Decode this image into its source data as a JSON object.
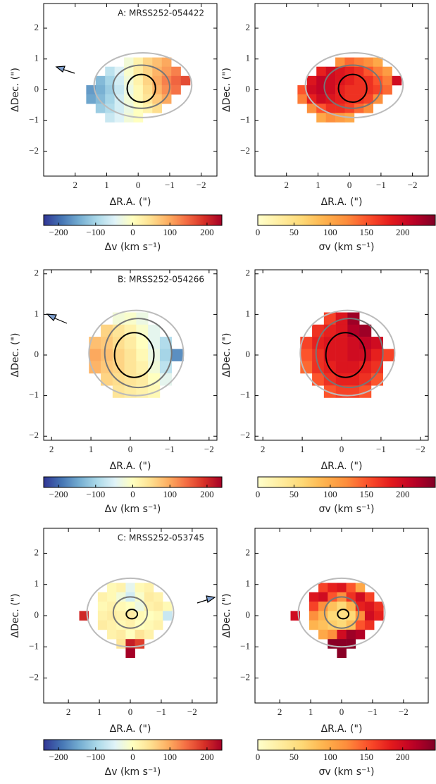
{
  "chart_data": [
    {
      "type": "heatmap",
      "title": "A: MRSS252-054422",
      "xlabel": "ΔR.A. (\")",
      "ylabel": "ΔDec. (\")",
      "xlim": [
        3.0,
        -2.5
      ],
      "ylim": [
        -2.8,
        2.8
      ],
      "xticks": [
        2,
        1,
        0,
        {
          "value": -1,
          "label": "−1"
        },
        {
          "value": -2,
          "label": "−2"
        }
      ],
      "yticks": [
        {
          "value": -2,
          "label": "−2"
        },
        {
          "value": -1,
          "label": "−1"
        },
        0,
        1,
        2
      ],
      "x": [
        1.5,
        1.2,
        0.9,
        0.6,
        0.3,
        0,
        -0.3,
        -0.6,
        -0.9,
        -1.2,
        -1.5
      ],
      "y": [
        0.9,
        0.6,
        0.3,
        0,
        -0.3,
        -0.6,
        -0.9
      ],
      "z": [
        [
          null,
          null,
          null,
          null,
          -20,
          20,
          60,
          80,
          100,
          null,
          null
        ],
        [
          null,
          null,
          -80,
          -50,
          -10,
          30,
          60,
          90,
          110,
          130,
          null
        ],
        [
          null,
          -130,
          -100,
          -60,
          -20,
          20,
          60,
          100,
          130,
          150,
          170
        ],
        [
          -160,
          -140,
          -110,
          -70,
          -30,
          10,
          50,
          90,
          120,
          140,
          null
        ],
        [
          -150,
          -130,
          -100,
          -60,
          -20,
          10,
          40,
          70,
          100,
          null,
          null
        ],
        [
          null,
          -110,
          -90,
          -60,
          -30,
          0,
          20,
          50,
          null,
          null,
          null
        ],
        [
          null,
          null,
          -70,
          -50,
          -20,
          0,
          null,
          null,
          null,
          null,
          null
        ]
      ],
      "colormap": "RdYlBu_r",
      "clim": [
        -240,
        240
      ],
      "cbar_ticks": [
        {
          "value": -200,
          "label": "−200"
        },
        {
          "value": -100,
          "label": "−100"
        },
        0,
        100,
        200
      ],
      "cbar_label": "Δv (km s⁻¹)",
      "contours": [
        {
          "cx": -0.15,
          "cy": 0.15,
          "rx": 1.55,
          "ry": 1.05,
          "color": "#bbbbbb"
        },
        {
          "cx": -0.1,
          "cy": 0.1,
          "rx": 0.9,
          "ry": 0.7,
          "color": "#777777"
        },
        {
          "cx": -0.1,
          "cy": 0.05,
          "rx": 0.45,
          "ry": 0.45,
          "color": "#000000"
        }
      ]
    },
    {
      "type": "heatmap",
      "xlabel": "ΔR.A. (\")",
      "ylabel": "ΔDec. (\")",
      "xlim": [
        3.0,
        -2.5
      ],
      "ylim": [
        -2.8,
        2.8
      ],
      "xticks": [
        2,
        1,
        0,
        {
          "value": -1,
          "label": "−1"
        },
        {
          "value": -2,
          "label": "−2"
        }
      ],
      "yticks": [
        {
          "value": -2,
          "label": "−2"
        },
        {
          "value": -1,
          "label": "−1"
        },
        0,
        1,
        2
      ],
      "x": [
        1.5,
        1.2,
        0.9,
        0.6,
        0.3,
        0,
        -0.3,
        -0.6,
        -0.9,
        -1.2,
        -1.5
      ],
      "y": [
        0.9,
        0.6,
        0.3,
        0,
        -0.3,
        -0.6,
        -0.9
      ],
      "z": [
        [
          null,
          null,
          null,
          null,
          120,
          140,
          130,
          120,
          100,
          null,
          null
        ],
        [
          null,
          null,
          180,
          200,
          190,
          180,
          170,
          150,
          130,
          110,
          null
        ],
        [
          null,
          190,
          210,
          200,
          190,
          180,
          170,
          170,
          150,
          130,
          200
        ],
        [
          150,
          200,
          210,
          200,
          180,
          170,
          170,
          170,
          160,
          140,
          null
        ],
        [
          130,
          180,
          200,
          190,
          180,
          170,
          170,
          160,
          120,
          null,
          null
        ],
        [
          null,
          120,
          150,
          170,
          170,
          160,
          140,
          120,
          null,
          null,
          null
        ],
        [
          null,
          null,
          100,
          120,
          110,
          100,
          null,
          null,
          null,
          null,
          null
        ]
      ],
      "colormap": "YlOrRd",
      "clim": [
        0,
        245
      ],
      "cbar_ticks": [
        0,
        50,
        100,
        150,
        200
      ],
      "cbar_label": "σv (km s⁻¹)",
      "contours": [
        {
          "cx": -0.15,
          "cy": 0.15,
          "rx": 1.55,
          "ry": 1.05,
          "color": "#bbbbbb"
        },
        {
          "cx": -0.1,
          "cy": 0.1,
          "rx": 0.9,
          "ry": 0.7,
          "color": "#777777"
        },
        {
          "cx": -0.1,
          "cy": 0.05,
          "rx": 0.45,
          "ry": 0.45,
          "color": "#000000"
        }
      ]
    },
    {
      "type": "heatmap",
      "title": "B: MRSS252-054266",
      "xlabel": "ΔR.A. (\")",
      "ylabel": "ΔDec. (\")",
      "xlim": [
        2.2,
        -2.2
      ],
      "ylim": [
        -2.1,
        2.1
      ],
      "xticks": [
        2,
        1,
        0,
        {
          "value": -1,
          "label": "−1"
        },
        {
          "value": -2,
          "label": "−2"
        }
      ],
      "yticks": [
        {
          "value": -2,
          "label": "−2"
        },
        {
          "value": -1,
          "label": "−1"
        },
        0,
        1,
        2
      ],
      "x": [
        0.9,
        0.6,
        0.3,
        0,
        -0.3,
        -0.6,
        -0.9,
        -1.2
      ],
      "y": [
        0.9,
        0.6,
        0.3,
        0,
        -0.3,
        -0.6,
        -0.9
      ],
      "z": [
        [
          null,
          null,
          -20,
          -10,
          -30,
          null,
          null,
          null
        ],
        [
          null,
          60,
          40,
          20,
          -10,
          -40,
          null,
          null
        ],
        [
          80,
          70,
          50,
          30,
          0,
          -40,
          -90,
          null
        ],
        [
          100,
          80,
          60,
          40,
          10,
          -30,
          -100,
          -170
        ],
        [
          90,
          70,
          60,
          40,
          20,
          -20,
          -80,
          null
        ],
        [
          null,
          60,
          50,
          40,
          30,
          0,
          -40,
          null
        ],
        [
          null,
          null,
          40,
          30,
          20,
          10,
          null,
          null
        ]
      ],
      "colormap": "RdYlBu_r",
      "clim": [
        -240,
        240
      ],
      "cbar_ticks": [
        {
          "value": -200,
          "label": "−200"
        },
        {
          "value": -100,
          "label": "−100"
        },
        0,
        100,
        200
      ],
      "cbar_label": "Δv (km s⁻¹)",
      "contours": [
        {
          "cx": -0.15,
          "cy": 0.05,
          "rx": 1.2,
          "ry": 1.05,
          "color": "#bbbbbb"
        },
        {
          "cx": -0.2,
          "cy": 0.05,
          "rx": 0.85,
          "ry": 0.85,
          "color": "#777777"
        },
        {
          "cx": -0.1,
          "cy": 0.0,
          "rx": 0.5,
          "ry": 0.55,
          "color": "#000000"
        }
      ]
    },
    {
      "type": "heatmap",
      "xlabel": "ΔR.A. (\")",
      "ylabel": "ΔDec. (\")",
      "xlim": [
        2.2,
        -2.2
      ],
      "ylim": [
        -2.1,
        2.1
      ],
      "xticks": [
        2,
        1,
        0,
        {
          "value": -1,
          "label": "−1"
        },
        {
          "value": -2,
          "label": "−2"
        }
      ],
      "yticks": [
        {
          "value": -2,
          "label": "−2"
        },
        {
          "value": -1,
          "label": "−1"
        },
        0,
        1,
        2
      ],
      "x": [
        0.9,
        0.6,
        0.3,
        0,
        -0.3,
        -0.6,
        -0.9,
        -1.2
      ],
      "y": [
        0.9,
        0.6,
        0.3,
        0,
        -0.3,
        -0.6,
        -0.9
      ],
      "z": [
        [
          null,
          null,
          160,
          190,
          230,
          null,
          null,
          null
        ],
        [
          null,
          170,
          180,
          190,
          220,
          230,
          null,
          null
        ],
        [
          160,
          180,
          190,
          190,
          200,
          210,
          200,
          null
        ],
        [
          150,
          170,
          190,
          190,
          200,
          200,
          180,
          160
        ],
        [
          140,
          170,
          180,
          190,
          190,
          180,
          170,
          null
        ],
        [
          null,
          150,
          170,
          180,
          180,
          170,
          150,
          null
        ],
        [
          null,
          null,
          150,
          160,
          160,
          150,
          null,
          null
        ]
      ],
      "colormap": "YlOrRd",
      "clim": [
        0,
        245
      ],
      "cbar_ticks": [
        0,
        50,
        100,
        150,
        200
      ],
      "cbar_label": "σv (km s⁻¹)",
      "contours": [
        {
          "cx": -0.15,
          "cy": 0.05,
          "rx": 1.2,
          "ry": 1.05,
          "color": "#bbbbbb"
        },
        {
          "cx": -0.2,
          "cy": 0.05,
          "rx": 0.85,
          "ry": 0.85,
          "color": "#777777"
        },
        {
          "cx": -0.1,
          "cy": 0.0,
          "rx": 0.5,
          "ry": 0.55,
          "color": "#000000"
        }
      ]
    },
    {
      "type": "heatmap",
      "title": "C: MRSS252-053745",
      "xlabel": "ΔR.A. (\")",
      "ylabel": "ΔDec. (\")",
      "xlim": [
        2.8,
        -2.8
      ],
      "ylim": [
        -2.8,
        2.8
      ],
      "xticks": [
        2,
        1,
        0,
        {
          "value": -1,
          "label": "−1"
        },
        {
          "value": -2,
          "label": "−2"
        }
      ],
      "yticks": [
        {
          "value": -2,
          "label": "−2"
        },
        {
          "value": -1,
          "label": "−1"
        },
        0,
        1,
        2
      ],
      "x": [
        1.5,
        1.2,
        0.9,
        0.6,
        0.3,
        0,
        -0.3,
        -0.6,
        -0.9,
        -1.2
      ],
      "y": [
        0.9,
        0.6,
        0.3,
        0,
        -0.3,
        -0.6,
        -0.9,
        -1.2
      ],
      "z": [
        [
          null,
          null,
          null,
          10,
          20,
          -40,
          10,
          20,
          null,
          null
        ],
        [
          null,
          null,
          20,
          10,
          -20,
          -60,
          -10,
          30,
          20,
          null
        ],
        [
          null,
          null,
          10,
          20,
          10,
          0,
          -30,
          20,
          30,
          10
        ],
        [
          200,
          null,
          20,
          30,
          20,
          30,
          10,
          0,
          10,
          -70
        ],
        [
          null,
          null,
          30,
          20,
          10,
          20,
          0,
          10,
          20,
          null
        ],
        [
          null,
          null,
          null,
          20,
          30,
          0,
          40,
          20,
          null,
          null
        ],
        [
          null,
          null,
          null,
          null,
          40,
          210,
          180,
          null,
          null,
          null
        ],
        [
          null,
          null,
          null,
          null,
          null,
          240,
          null,
          null,
          null,
          null
        ]
      ],
      "colormap": "RdYlBu_r",
      "clim": [
        -240,
        240
      ],
      "cbar_ticks": [
        {
          "value": -200,
          "label": "−200"
        },
        {
          "value": -100,
          "label": "−100"
        },
        0,
        100,
        200
      ],
      "cbar_label": "Δv (km s⁻¹)",
      "contours": [
        {
          "cx": 0.0,
          "cy": 0.1,
          "rx": 1.4,
          "ry": 1.1,
          "color": "#bbbbbb"
        },
        {
          "cx": 0.0,
          "cy": 0.1,
          "rx": 0.55,
          "ry": 0.5,
          "color": "#777777"
        },
        {
          "cx": -0.05,
          "cy": 0.05,
          "rx": 0.18,
          "ry": 0.15,
          "color": "#000000"
        }
      ]
    },
    {
      "type": "heatmap",
      "xlabel": "ΔR.A. (\")",
      "ylabel": "ΔDec. (\")",
      "xlim": [
        2.8,
        -2.8
      ],
      "ylim": [
        -2.8,
        2.8
      ],
      "xticks": [
        2,
        1,
        0,
        {
          "value": -1,
          "label": "−1"
        },
        {
          "value": -2,
          "label": "−2"
        }
      ],
      "yticks": [
        {
          "value": -2,
          "label": "−2"
        },
        {
          "value": -1,
          "label": "−1"
        },
        0,
        1,
        2
      ],
      "x": [
        1.5,
        1.2,
        0.9,
        0.6,
        0.3,
        0,
        -0.3,
        -0.6,
        -0.9,
        -1.2
      ],
      "y": [
        0.9,
        0.6,
        0.3,
        0,
        -0.3,
        -0.6,
        -0.9,
        -1.2
      ],
      "z": [
        [
          null,
          null,
          null,
          160,
          180,
          190,
          150,
          100,
          null,
          null
        ],
        [
          null,
          null,
          190,
          200,
          150,
          120,
          170,
          200,
          160,
          null
        ],
        [
          null,
          null,
          160,
          120,
          80,
          60,
          90,
          180,
          190,
          170
        ],
        [
          200,
          null,
          120,
          90,
          60,
          50,
          60,
          120,
          200,
          180
        ],
        [
          null,
          null,
          90,
          80,
          70,
          60,
          80,
          150,
          170,
          null
        ],
        [
          null,
          null,
          null,
          100,
          120,
          200,
          230,
          220,
          null,
          null
        ],
        [
          null,
          null,
          null,
          null,
          240,
          240,
          240,
          null,
          null,
          null
        ],
        [
          null,
          null,
          null,
          null,
          null,
          240,
          null,
          null,
          null,
          null
        ]
      ],
      "colormap": "YlOrRd",
      "clim": [
        0,
        245
      ],
      "cbar_ticks": [
        0,
        50,
        100,
        150,
        200
      ],
      "cbar_label": "σv (km s⁻¹)",
      "contours": [
        {
          "cx": 0.0,
          "cy": 0.1,
          "rx": 1.4,
          "ry": 1.1,
          "color": "#bbbbbb"
        },
        {
          "cx": 0.0,
          "cy": 0.1,
          "rx": 0.55,
          "ry": 0.5,
          "color": "#777777"
        },
        {
          "cx": -0.05,
          "cy": 0.05,
          "rx": 0.18,
          "ry": 0.15,
          "color": "#000000"
        }
      ]
    }
  ]
}
